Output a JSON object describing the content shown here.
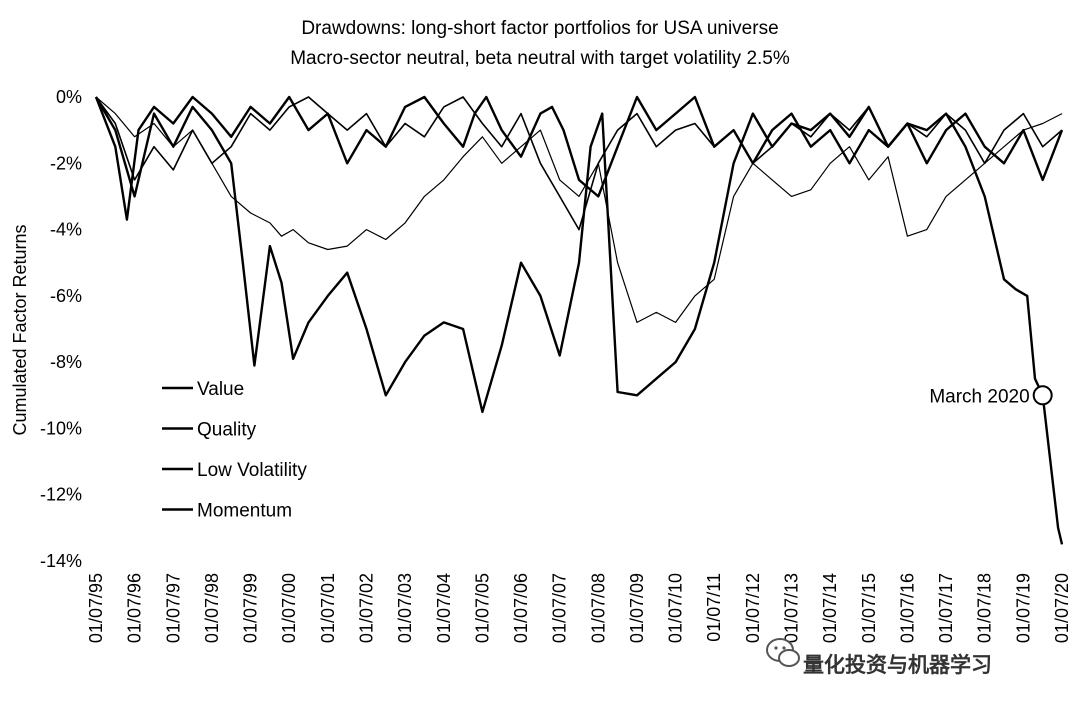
{
  "chart_data": {
    "type": "line",
    "title": "Drawdowns: long-short factor portfolios for USA universe",
    "subtitle": "Macro-sector neutral, beta neutral with target volatility 2.5%",
    "xlabel": "",
    "ylabel": "Cumulated Factor Returns",
    "x_ticks": [
      "01/07/95",
      "01/07/96",
      "01/07/97",
      "01/07/98",
      "01/07/99",
      "01/07/00",
      "01/07/01",
      "01/07/02",
      "01/07/03",
      "01/07/04",
      "01/07/05",
      "01/07/06",
      "01/07/07",
      "01/07/08",
      "01/07/09",
      "01/07/10",
      "01/07/11",
      "01/07/12",
      "01/07/13",
      "01/07/14",
      "01/07/15",
      "01/07/16",
      "01/07/17",
      "01/07/18",
      "01/07/19",
      "01/07/20"
    ],
    "y_ticks": [
      "0%",
      "-2%",
      "-4%",
      "-6%",
      "-8%",
      "-10%",
      "-12%",
      "-14%"
    ],
    "ylim": [
      -14,
      0
    ],
    "xlim": [
      1995.5,
      2020.5
    ],
    "grid": false,
    "legend_position": "bottom-left",
    "series": [
      {
        "name": "Value",
        "color": "#000000",
        "width": 1.2,
        "x": [
          1995.5,
          1996.0,
          1996.5,
          1997.0,
          1997.5,
          1998.0,
          1998.5,
          1999.0,
          1999.5,
          2000.0,
          2000.3,
          2000.6,
          2001.0,
          2001.5,
          2002.0,
          2002.5,
          2003.0,
          2003.5,
          2004.0,
          2004.5,
          2005.0,
          2005.5,
          2006.0,
          2006.5,
          2007.0,
          2007.5,
          2008.0,
          2008.5,
          2009.0,
          2009.5,
          2010.0,
          2010.5,
          2011.0,
          2011.5,
          2012.0,
          2012.5,
          2013.0,
          2013.5,
          2014.0,
          2014.5,
          2015.0,
          2015.5,
          2016.0,
          2016.5,
          2017.0,
          2017.5,
          2018.0,
          2018.5,
          2019.0,
          2019.5,
          2020.0,
          2020.5
        ],
        "y": [
          0,
          -0.5,
          -1.2,
          -0.8,
          -1.5,
          -1.0,
          -2.0,
          -3.0,
          -3.5,
          -3.8,
          -4.2,
          -4.0,
          -4.4,
          -4.6,
          -4.5,
          -4.0,
          -4.3,
          -3.8,
          -3.0,
          -2.5,
          -1.8,
          -1.2,
          -2.0,
          -1.5,
          -1.0,
          -2.5,
          -3.0,
          -2.0,
          -5.0,
          -6.8,
          -6.5,
          -6.8,
          -6.0,
          -5.5,
          -3.0,
          -2.0,
          -2.5,
          -3.0,
          -2.8,
          -2.0,
          -1.5,
          -2.5,
          -1.8,
          -4.2,
          -4.0,
          -3.0,
          -2.5,
          -2.0,
          -1.5,
          -1.0,
          -0.8,
          -0.5
        ]
      },
      {
        "name": "Quality",
        "color": "#000000",
        "width": 1.6,
        "x": [
          1995.5,
          1996.0,
          1996.5,
          1997.0,
          1997.5,
          1998.0,
          1998.5,
          1999.0,
          1999.5,
          2000.0,
          2000.5,
          2001.0,
          2001.5,
          2002.0,
          2002.5,
          2003.0,
          2003.5,
          2004.0,
          2004.5,
          2005.0,
          2005.5,
          2006.0,
          2006.5,
          2007.0,
          2007.5,
          2008.0,
          2008.5,
          2009.0,
          2009.5,
          2010.0,
          2010.5,
          2011.0,
          2011.5,
          2012.0,
          2012.5,
          2013.0,
          2013.5,
          2014.0,
          2014.5,
          2015.0,
          2015.5,
          2016.0,
          2016.5,
          2017.0,
          2017.5,
          2018.0,
          2018.5,
          2019.0,
          2019.5,
          2020.0,
          2020.5
        ],
        "y": [
          0,
          -0.8,
          -2.5,
          -1.5,
          -2.2,
          -1.0,
          -2.0,
          -1.5,
          -0.5,
          -1.0,
          -0.3,
          0,
          -0.5,
          -1.0,
          -0.5,
          -1.5,
          -0.8,
          -1.2,
          -0.3,
          0,
          -0.8,
          -1.5,
          -0.5,
          -2.0,
          -3.0,
          -4.0,
          -2.0,
          -1.0,
          -0.5,
          -1.5,
          -1.0,
          -0.8,
          -1.5,
          -1.0,
          -2.0,
          -1.5,
          -0.8,
          -1.2,
          -0.5,
          -1.0,
          -0.3,
          -1.5,
          -0.8,
          -1.2,
          -0.5,
          -1.0,
          -2.0,
          -1.0,
          -0.5,
          -1.5,
          -1.0
        ]
      },
      {
        "name": "Low Volatility",
        "color": "#000000",
        "width": 2.4,
        "x": [
          1995.5,
          1996.0,
          1996.5,
          1997.0,
          1997.5,
          1998.0,
          1998.5,
          1999.0,
          1999.3,
          1999.6,
          2000.0,
          2000.3,
          2000.6,
          2001.0,
          2001.5,
          2002.0,
          2002.5,
          2003.0,
          2003.5,
          2004.0,
          2004.5,
          2005.0,
          2005.5,
          2006.0,
          2006.5,
          2007.0,
          2007.5,
          2008.0,
          2008.3,
          2008.6,
          2009.0,
          2009.5,
          2010.0,
          2010.5,
          2011.0,
          2011.5,
          2012.0,
          2012.5,
          2013.0,
          2013.5,
          2014.0,
          2014.5,
          2015.0,
          2015.5,
          2016.0,
          2016.5,
          2017.0,
          2017.5,
          2018.0,
          2018.5,
          2019.0,
          2019.3,
          2019.6,
          2019.8,
          2020.0,
          2020.2,
          2020.4,
          2020.5
        ],
        "y": [
          0,
          -1.0,
          -3.0,
          -0.5,
          -1.5,
          -0.3,
          -1.0,
          -2.0,
          -5.0,
          -8.1,
          -4.5,
          -5.6,
          -7.9,
          -6.8,
          -6.0,
          -5.3,
          -7.0,
          -9.0,
          -8.0,
          -7.2,
          -6.8,
          -7.0,
          -9.5,
          -7.5,
          -5.0,
          -6.0,
          -7.8,
          -5.0,
          -1.5,
          -0.5,
          -8.9,
          -9.0,
          -8.5,
          -8.0,
          -7.0,
          -5.0,
          -2.0,
          -0.5,
          -1.5,
          -0.8,
          -1.0,
          -0.5,
          -1.2,
          -0.3,
          -1.5,
          -0.8,
          -1.0,
          -0.5,
          -1.5,
          -3.0,
          -5.5,
          -5.8,
          -6.0,
          -8.5,
          -9.0,
          -11.0,
          -13.0,
          -13.5
        ]
      },
      {
        "name": "Momentum",
        "color": "#000000",
        "width": 2.4,
        "x": [
          1995.5,
          1996.0,
          1996.3,
          1996.6,
          1997.0,
          1997.5,
          1998.0,
          1998.5,
          1999.0,
          1999.5,
          2000.0,
          2000.5,
          2001.0,
          2001.5,
          2002.0,
          2002.5,
          2003.0,
          2003.5,
          2004.0,
          2004.5,
          2005.0,
          2005.3,
          2005.6,
          2006.0,
          2006.5,
          2007.0,
          2007.3,
          2007.6,
          2008.0,
          2008.5,
          2009.0,
          2009.5,
          2010.0,
          2010.5,
          2011.0,
          2011.5,
          2012.0,
          2012.5,
          2013.0,
          2013.5,
          2014.0,
          2014.5,
          2015.0,
          2015.5,
          2016.0,
          2016.5,
          2017.0,
          2017.5,
          2018.0,
          2018.5,
          2019.0,
          2019.5,
          2020.0,
          2020.5
        ],
        "y": [
          0,
          -1.5,
          -3.7,
          -1.0,
          -0.3,
          -0.8,
          0,
          -0.5,
          -1.2,
          -0.3,
          -0.8,
          0,
          -1.0,
          -0.5,
          -2.0,
          -1.0,
          -1.5,
          -0.3,
          0,
          -0.8,
          -1.5,
          -0.5,
          0,
          -1.0,
          -1.8,
          -0.5,
          -0.3,
          -1.0,
          -2.5,
          -3.0,
          -1.5,
          0,
          -1.0,
          -0.5,
          0,
          -1.5,
          -1.0,
          -2.0,
          -1.0,
          -0.5,
          -1.5,
          -1.0,
          -2.0,
          -1.0,
          -1.5,
          -0.8,
          -2.0,
          -1.0,
          -0.5,
          -1.5,
          -2.0,
          -1.0,
          -2.5,
          -1.0
        ]
      }
    ],
    "annotation": {
      "label": "March 2020",
      "x": 2020.0,
      "y": -9.0
    }
  },
  "watermark": {
    "text": "量化投资与机器学习",
    "icon": "wechat-icon"
  }
}
